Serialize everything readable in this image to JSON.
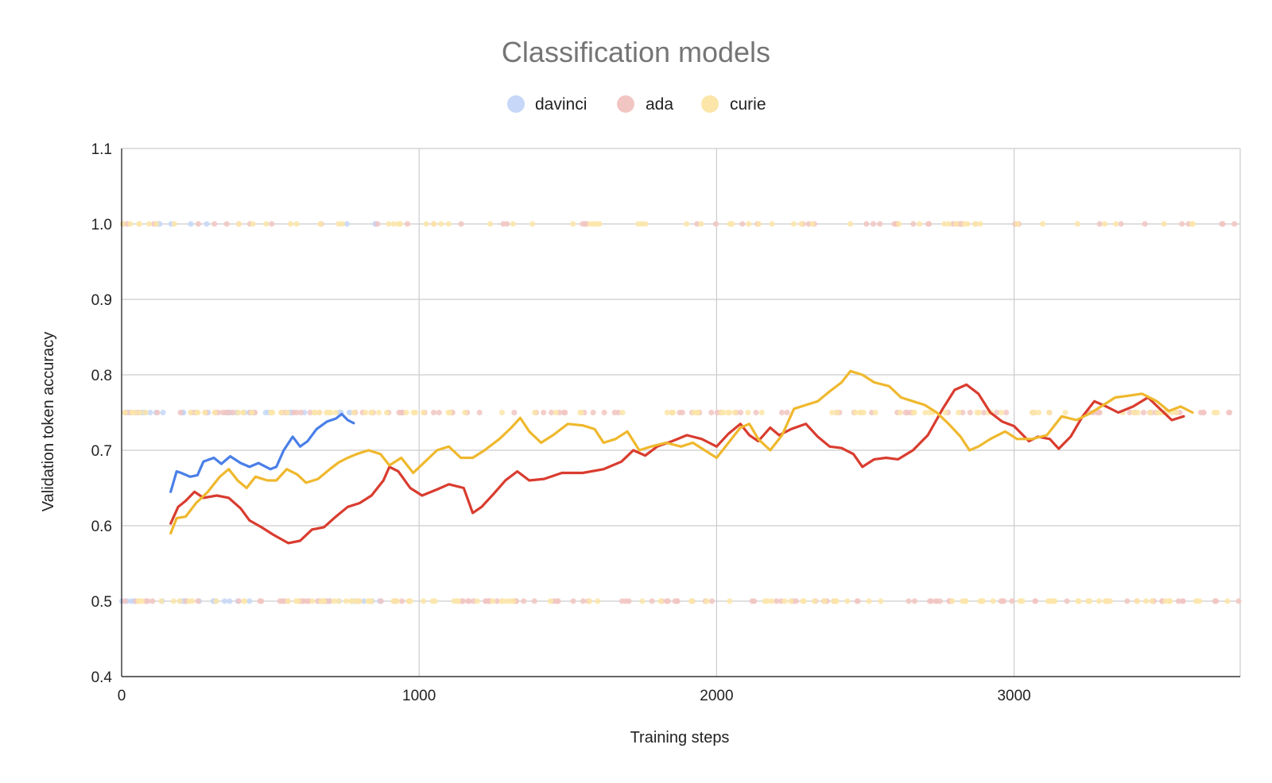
{
  "chart_data": {
    "type": "scatter",
    "title": "Classification models",
    "xlabel": "Training steps",
    "ylabel": "Validation token accuracy",
    "xlim": [
      0,
      3760
    ],
    "ylim": [
      0.4,
      1.1
    ],
    "x_ticks": [
      0,
      1000,
      2000,
      3000
    ],
    "x_tick_labels": [
      "0",
      "1000",
      "2000",
      "3000"
    ],
    "y_ticks": [
      0.4,
      0.5,
      0.6,
      0.7,
      0.8,
      0.9,
      1.0,
      1.1
    ],
    "y_tick_labels": [
      "0.4",
      "0.5",
      "0.6",
      "0.7",
      "0.8",
      "0.9",
      "1.0",
      "1.1"
    ],
    "grid": true,
    "legend_position": "top",
    "series": [
      {
        "name": "davinci",
        "color": "#4a7fe8",
        "marker_color": "#c6d7f7",
        "points_note": "raw validation points at 0.5, 0.75 and 1.0",
        "scatter_x_range": [
          0,
          880
        ],
        "trend": [
          [
            165,
            0.645
          ],
          [
            185,
            0.672
          ],
          [
            200,
            0.67
          ],
          [
            230,
            0.665
          ],
          [
            255,
            0.667
          ],
          [
            275,
            0.685
          ],
          [
            310,
            0.69
          ],
          [
            335,
            0.682
          ],
          [
            365,
            0.692
          ],
          [
            400,
            0.683
          ],
          [
            430,
            0.678
          ],
          [
            460,
            0.683
          ],
          [
            500,
            0.675
          ],
          [
            520,
            0.678
          ],
          [
            545,
            0.7
          ],
          [
            575,
            0.718
          ],
          [
            600,
            0.705
          ],
          [
            625,
            0.712
          ],
          [
            655,
            0.728
          ],
          [
            690,
            0.738
          ],
          [
            720,
            0.742
          ],
          [
            740,
            0.748
          ],
          [
            760,
            0.74
          ],
          [
            780,
            0.736
          ]
        ]
      },
      {
        "name": "ada",
        "color": "#d93c2f",
        "marker_color": "#f1c6c2",
        "scatter_x_range": [
          0,
          3760
        ],
        "trend": [
          [
            165,
            0.603
          ],
          [
            190,
            0.625
          ],
          [
            215,
            0.633
          ],
          [
            245,
            0.645
          ],
          [
            275,
            0.637
          ],
          [
            320,
            0.64
          ],
          [
            360,
            0.637
          ],
          [
            400,
            0.623
          ],
          [
            430,
            0.607
          ],
          [
            470,
            0.598
          ],
          [
            510,
            0.588
          ],
          [
            560,
            0.577
          ],
          [
            600,
            0.58
          ],
          [
            640,
            0.595
          ],
          [
            680,
            0.598
          ],
          [
            720,
            0.612
          ],
          [
            760,
            0.625
          ],
          [
            800,
            0.63
          ],
          [
            840,
            0.64
          ],
          [
            880,
            0.66
          ],
          [
            900,
            0.678
          ],
          [
            930,
            0.672
          ],
          [
            970,
            0.65
          ],
          [
            1010,
            0.64
          ],
          [
            1060,
            0.648
          ],
          [
            1100,
            0.655
          ],
          [
            1150,
            0.65
          ],
          [
            1180,
            0.617
          ],
          [
            1210,
            0.625
          ],
          [
            1250,
            0.642
          ],
          [
            1290,
            0.66
          ],
          [
            1330,
            0.672
          ],
          [
            1370,
            0.66
          ],
          [
            1420,
            0.662
          ],
          [
            1480,
            0.67
          ],
          [
            1550,
            0.67
          ],
          [
            1620,
            0.675
          ],
          [
            1680,
            0.685
          ],
          [
            1720,
            0.7
          ],
          [
            1760,
            0.693
          ],
          [
            1800,
            0.705
          ],
          [
            1850,
            0.712
          ],
          [
            1900,
            0.72
          ],
          [
            1950,
            0.715
          ],
          [
            2000,
            0.705
          ],
          [
            2040,
            0.722
          ],
          [
            2080,
            0.735
          ],
          [
            2110,
            0.72
          ],
          [
            2140,
            0.712
          ],
          [
            2180,
            0.73
          ],
          [
            2210,
            0.72
          ],
          [
            2250,
            0.728
          ],
          [
            2300,
            0.735
          ],
          [
            2340,
            0.718
          ],
          [
            2380,
            0.705
          ],
          [
            2420,
            0.703
          ],
          [
            2460,
            0.695
          ],
          [
            2490,
            0.678
          ],
          [
            2530,
            0.688
          ],
          [
            2570,
            0.69
          ],
          [
            2610,
            0.688
          ],
          [
            2660,
            0.7
          ],
          [
            2710,
            0.72
          ],
          [
            2760,
            0.755
          ],
          [
            2800,
            0.78
          ],
          [
            2840,
            0.787
          ],
          [
            2880,
            0.775
          ],
          [
            2920,
            0.75
          ],
          [
            2960,
            0.738
          ],
          [
            3000,
            0.732
          ],
          [
            3050,
            0.712
          ],
          [
            3080,
            0.718
          ],
          [
            3120,
            0.715
          ],
          [
            3150,
            0.702
          ],
          [
            3190,
            0.718
          ],
          [
            3230,
            0.745
          ],
          [
            3270,
            0.765
          ],
          [
            3310,
            0.758
          ],
          [
            3350,
            0.75
          ],
          [
            3400,
            0.758
          ],
          [
            3450,
            0.77
          ],
          [
            3490,
            0.755
          ],
          [
            3530,
            0.74
          ],
          [
            3570,
            0.745
          ]
        ]
      },
      {
        "name": "curie",
        "color": "#efb82d",
        "marker_color": "#fbe5a8",
        "scatter_x_range": [
          0,
          3760
        ],
        "trend": [
          [
            165,
            0.59
          ],
          [
            185,
            0.61
          ],
          [
            215,
            0.612
          ],
          [
            250,
            0.63
          ],
          [
            290,
            0.645
          ],
          [
            330,
            0.665
          ],
          [
            360,
            0.675
          ],
          [
            390,
            0.66
          ],
          [
            420,
            0.65
          ],
          [
            450,
            0.665
          ],
          [
            490,
            0.66
          ],
          [
            520,
            0.66
          ],
          [
            555,
            0.675
          ],
          [
            590,
            0.668
          ],
          [
            620,
            0.657
          ],
          [
            660,
            0.662
          ],
          [
            700,
            0.675
          ],
          [
            730,
            0.684
          ],
          [
            760,
            0.69
          ],
          [
            790,
            0.695
          ],
          [
            830,
            0.7
          ],
          [
            870,
            0.695
          ],
          [
            900,
            0.68
          ],
          [
            940,
            0.69
          ],
          [
            980,
            0.67
          ],
          [
            1020,
            0.685
          ],
          [
            1060,
            0.7
          ],
          [
            1100,
            0.705
          ],
          [
            1140,
            0.69
          ],
          [
            1180,
            0.69
          ],
          [
            1220,
            0.7
          ],
          [
            1270,
            0.715
          ],
          [
            1310,
            0.73
          ],
          [
            1340,
            0.743
          ],
          [
            1370,
            0.725
          ],
          [
            1410,
            0.71
          ],
          [
            1450,
            0.72
          ],
          [
            1500,
            0.735
          ],
          [
            1550,
            0.733
          ],
          [
            1590,
            0.728
          ],
          [
            1620,
            0.71
          ],
          [
            1660,
            0.715
          ],
          [
            1700,
            0.725
          ],
          [
            1740,
            0.7
          ],
          [
            1780,
            0.705
          ],
          [
            1830,
            0.71
          ],
          [
            1880,
            0.705
          ],
          [
            1920,
            0.71
          ],
          [
            1960,
            0.7
          ],
          [
            2000,
            0.69
          ],
          [
            2040,
            0.71
          ],
          [
            2080,
            0.73
          ],
          [
            2110,
            0.735
          ],
          [
            2140,
            0.715
          ],
          [
            2180,
            0.7
          ],
          [
            2220,
            0.72
          ],
          [
            2260,
            0.755
          ],
          [
            2300,
            0.76
          ],
          [
            2340,
            0.765
          ],
          [
            2380,
            0.778
          ],
          [
            2420,
            0.79
          ],
          [
            2450,
            0.805
          ],
          [
            2490,
            0.8
          ],
          [
            2530,
            0.79
          ],
          [
            2580,
            0.785
          ],
          [
            2620,
            0.77
          ],
          [
            2660,
            0.765
          ],
          [
            2700,
            0.76
          ],
          [
            2740,
            0.75
          ],
          [
            2780,
            0.735
          ],
          [
            2820,
            0.718
          ],
          [
            2850,
            0.7
          ],
          [
            2880,
            0.705
          ],
          [
            2920,
            0.715
          ],
          [
            2970,
            0.725
          ],
          [
            3010,
            0.715
          ],
          [
            3060,
            0.715
          ],
          [
            3110,
            0.72
          ],
          [
            3160,
            0.745
          ],
          [
            3210,
            0.74
          ],
          [
            3260,
            0.75
          ],
          [
            3300,
            0.76
          ],
          [
            3340,
            0.77
          ],
          [
            3380,
            0.772
          ],
          [
            3430,
            0.775
          ],
          [
            3480,
            0.765
          ],
          [
            3520,
            0.752
          ],
          [
            3560,
            0.758
          ],
          [
            3600,
            0.75
          ]
        ]
      }
    ]
  }
}
